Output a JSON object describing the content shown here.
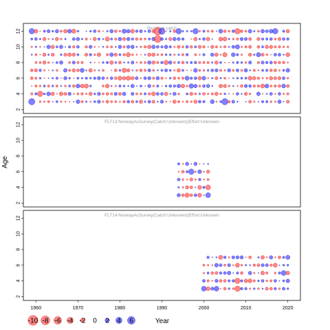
{
  "chart_data": {
    "type": "scatter",
    "subtype": "bubble-residuals",
    "xlabel": "Year",
    "ylabel": "Age",
    "xlim": [
      1957,
      2023
    ],
    "x_ticks": [
      1960,
      1970,
      1980,
      1990,
      2000,
      2010,
      2020
    ],
    "positive_color": "#3c3cff",
    "negative_color": "#ff4646",
    "legend": {
      "placement": "bottom-left",
      "values": [
        -10,
        -8,
        -6,
        -4,
        -2,
        0,
        2,
        4,
        6
      ]
    },
    "panels": [
      {
        "id": "residual-catch",
        "title": "Residual catch",
        "ylim": [
          1.5,
          13
        ],
        "y_ticks": [
          2,
          4,
          6,
          8,
          10,
          12
        ],
        "ages": [
          3,
          4,
          5,
          6,
          7,
          8,
          9,
          10,
          11,
          12
        ],
        "years": [
          1959,
          2020
        ],
        "highlights": [
          {
            "year": 1959,
            "age": 3,
            "value": 4
          },
          {
            "year": 1959,
            "age": 12,
            "value": 3
          },
          {
            "year": 1989,
            "age": 12,
            "value": -6
          },
          {
            "year": 1989,
            "age": 11,
            "value": -5
          },
          {
            "year": 1990,
            "age": 12,
            "value": 4
          },
          {
            "year": 1961,
            "age": 4,
            "value": -3
          },
          {
            "year": 2005,
            "age": 3,
            "value": 4
          },
          {
            "year": 2017,
            "age": 12,
            "value": 3
          },
          {
            "year": 2008,
            "age": 12,
            "value": -3
          },
          {
            "year": 1994,
            "age": 12,
            "value": 3
          },
          {
            "year": 1998,
            "age": 12,
            "value": 3
          }
        ]
      },
      {
        "id": "flt13",
        "title": "FLT13:NorwayAcSurvey(Catch:Unknown)(Effort:Unknown",
        "ylim": [
          1.5,
          13
        ],
        "y_ticks": [
          2,
          4,
          6,
          8,
          10,
          12
        ],
        "ages": [
          3,
          4,
          5,
          6,
          7
        ],
        "years": [
          1994,
          2001
        ],
        "highlights": [
          {
            "year": 1997,
            "age": 6,
            "value": 3
          },
          {
            "year": 2001,
            "age": 3,
            "value": 2.5
          },
          {
            "year": 2001,
            "age": 4,
            "value": -2.5
          },
          {
            "year": 1996,
            "age": 3,
            "value": -2
          }
        ]
      },
      {
        "id": "flt14",
        "title": "FLT14:NorwayAcSurvey(Catch:Unknown)(Effort:Unknown",
        "ylim": [
          1.5,
          13
        ],
        "y_ticks": [
          2,
          4,
          6,
          8,
          10,
          12
        ],
        "ages": [
          3,
          4,
          5,
          6,
          7
        ],
        "years": [
          2000,
          2020
        ],
        "highlights": [
          {
            "year": 2000,
            "age": 3,
            "value": 2.5
          },
          {
            "year": 2003,
            "age": 3,
            "value": 2.5
          },
          {
            "year": 2008,
            "age": 3,
            "value": -3
          },
          {
            "year": 2008,
            "age": 4,
            "value": -3
          },
          {
            "year": 2019,
            "age": 5,
            "value": 2.5
          }
        ]
      }
    ]
  }
}
